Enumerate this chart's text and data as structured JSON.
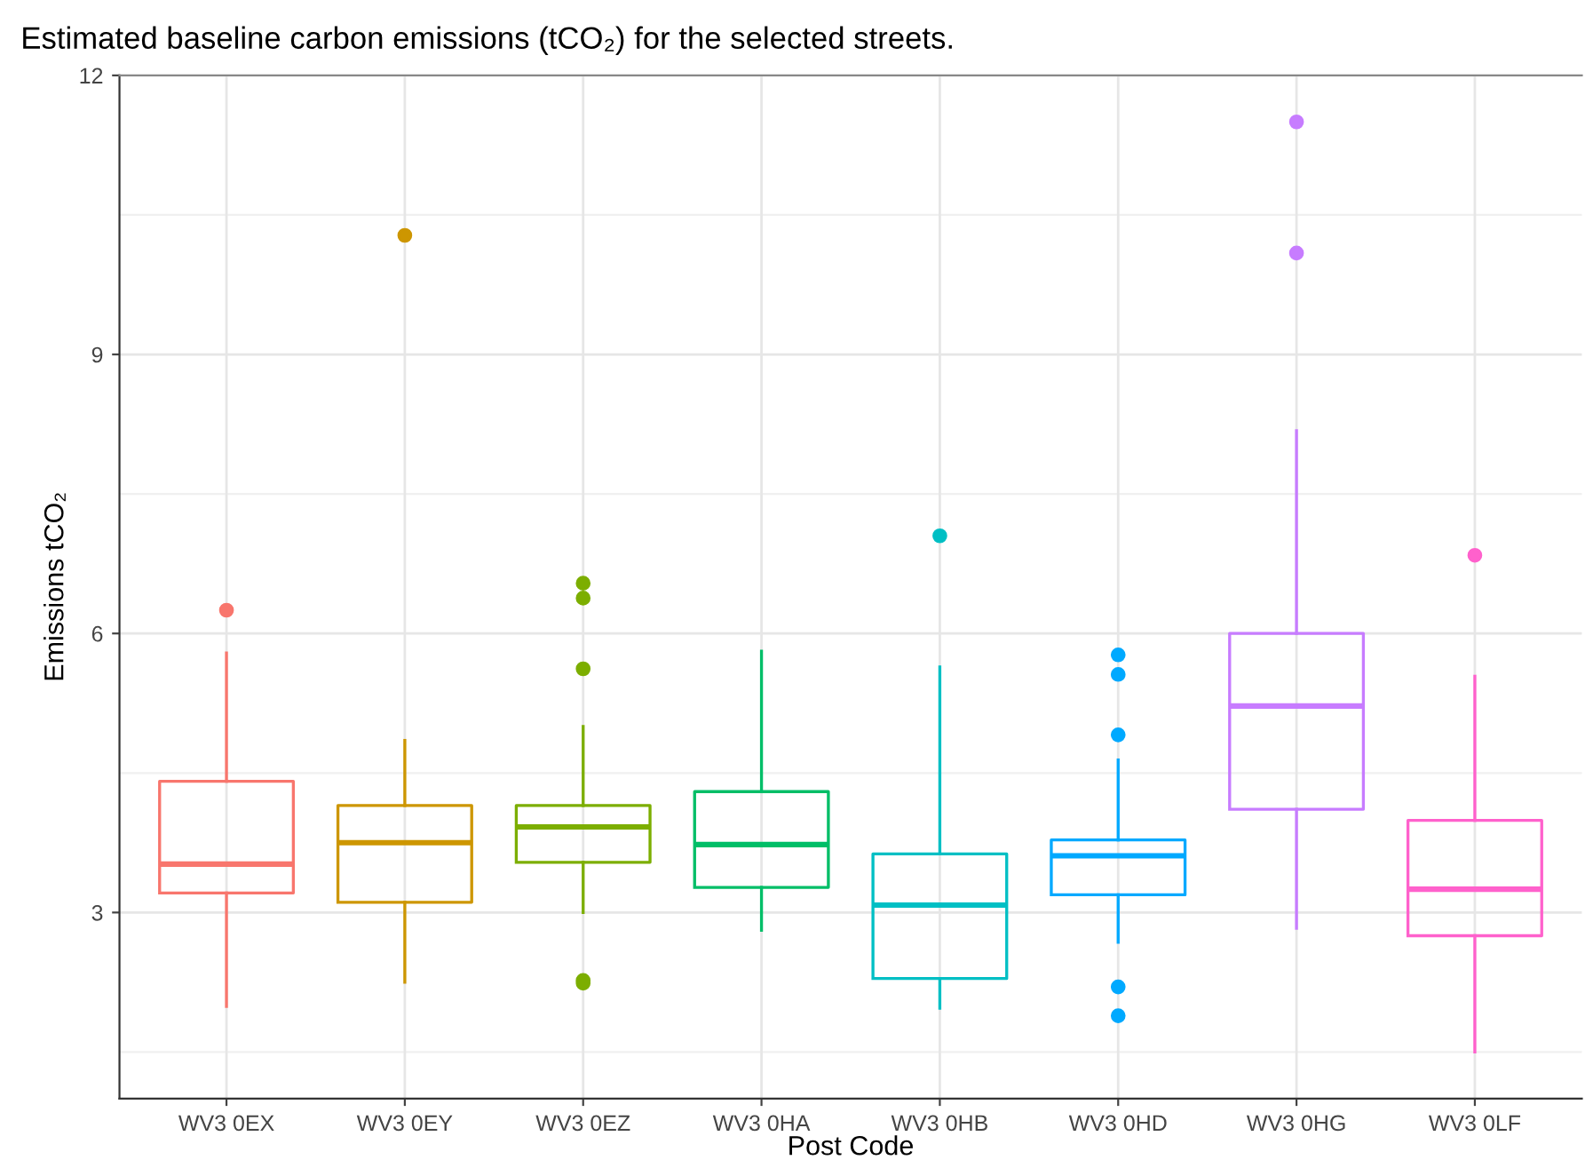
{
  "chart_data": {
    "type": "box",
    "title": "Estimated baseline carbon emissions (tCO₂) for the selected streets.",
    "xlabel": "Post Code",
    "ylabel": "Emissions tCO₂",
    "categories": [
      "WV3 0EX",
      "WV3 0EY",
      "WV3 0EZ",
      "WV3 0HA",
      "WV3 0HB",
      "WV3 0HD",
      "WV3 0HG",
      "WV3 0LF"
    ],
    "colors": [
      "#f8766d",
      "#cd9600",
      "#7cae00",
      "#00be67",
      "#00bfc4",
      "#00a9ff",
      "#c77cff",
      "#ff61cc"
    ],
    "boxes": [
      {
        "low": 1.99,
        "q1": 3.21,
        "median": 3.52,
        "q3": 4.41,
        "high": 5.79,
        "outliers": [
          6.25
        ]
      },
      {
        "low": 2.25,
        "q1": 3.11,
        "median": 3.75,
        "q3": 4.15,
        "high": 4.85,
        "outliers": [
          10.28
        ]
      },
      {
        "low": 3.0,
        "q1": 3.54,
        "median": 3.92,
        "q3": 4.15,
        "high": 5.0,
        "outliers": [
          6.54,
          6.38,
          5.62,
          2.27,
          2.24
        ]
      },
      {
        "low": 2.81,
        "q1": 3.27,
        "median": 3.73,
        "q3": 4.3,
        "high": 5.81
      },
      {
        "low": 1.97,
        "q1": 2.29,
        "median": 3.08,
        "q3": 3.63,
        "high": 5.64,
        "outliers": [
          7.05
        ]
      },
      {
        "low": 2.68,
        "q1": 3.19,
        "median": 3.61,
        "q3": 3.78,
        "high": 4.64,
        "outliers": [
          5.77,
          5.56,
          4.91,
          2.2,
          1.89
        ]
      },
      {
        "low": 2.83,
        "q1": 4.11,
        "median": 5.22,
        "q3": 6.0,
        "high": 8.18,
        "outliers": [
          11.5,
          10.09
        ]
      },
      {
        "low": 1.5,
        "q1": 2.75,
        "median": 3.25,
        "q3": 3.99,
        "high": 5.54,
        "outliers": [
          6.84
        ]
      }
    ],
    "ylim": [
      1.0,
      12.0
    ],
    "yticks": [
      3,
      6,
      9,
      12
    ],
    "grid": true
  }
}
